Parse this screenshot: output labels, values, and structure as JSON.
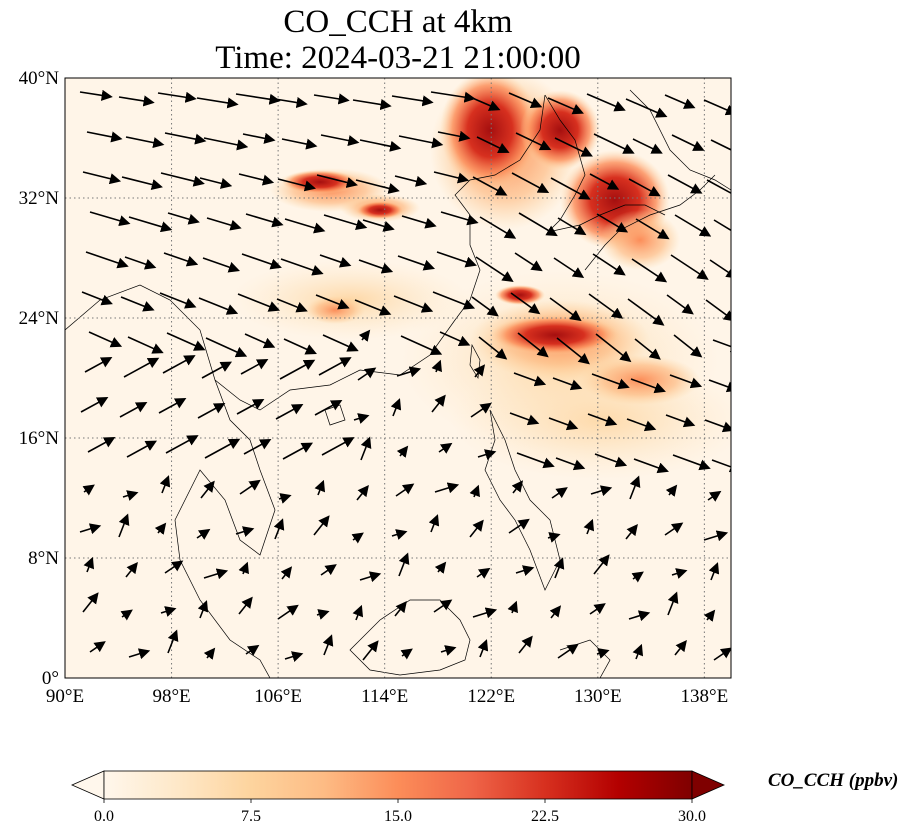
{
  "title_line1": "CO_CCH at 4km",
  "title_line2": "Time: 2024-03-21 21:00:00",
  "map": {
    "lon_range": [
      90,
      140
    ],
    "lat_range": [
      0,
      40
    ],
    "lon_ticks": [
      "90°E",
      "98°E",
      "106°E",
      "114°E",
      "122°E",
      "130°E",
      "138°E"
    ],
    "lat_ticks": [
      "0°",
      "8°N",
      "16°N",
      "24°N",
      "32°N",
      "40°N"
    ],
    "gridlines": true,
    "field": "CO_CCH",
    "colormap": "OrRd",
    "wind_vectors": true
  },
  "colorbar": {
    "label": "CO_CCH (ppbv)",
    "ticks": [
      "0.0",
      "7.5",
      "15.0",
      "22.5",
      "30.0"
    ],
    "range": [
      0,
      30
    ],
    "extend": "both",
    "colors": [
      "#fff7ec",
      "#fee8c8",
      "#fdd49e",
      "#fdbb84",
      "#fc8d59",
      "#ef6548",
      "#d7301f",
      "#b30000",
      "#7f0000"
    ]
  }
}
